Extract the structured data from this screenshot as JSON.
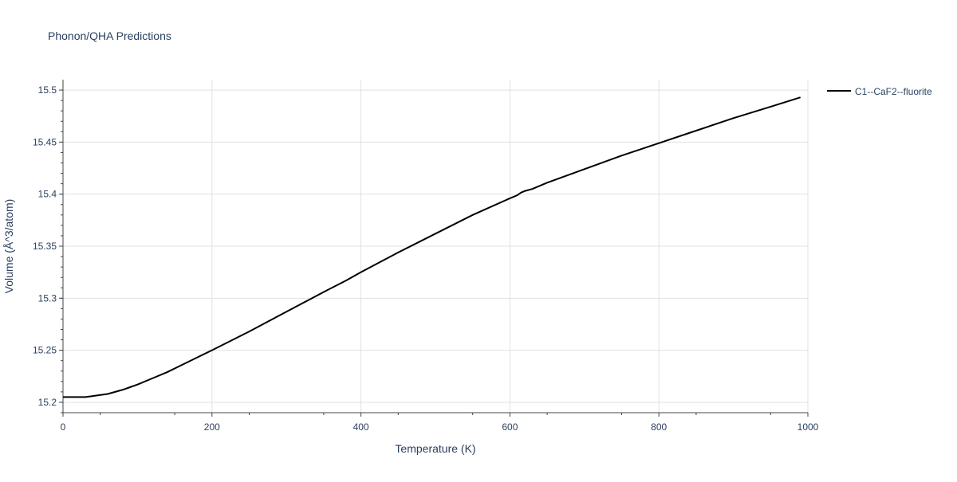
{
  "chart_data": {
    "type": "line",
    "title": "Phonon/QHA Predictions",
    "xlabel": "Temperature (K)",
    "ylabel": "Volume (Å^3/atom)",
    "xlim": [
      0,
      1000
    ],
    "ylim": [
      15.19,
      15.51
    ],
    "x_ticks": [
      0,
      200,
      400,
      600,
      800,
      1000
    ],
    "y_ticks": [
      15.2,
      15.25,
      15.3,
      15.35,
      15.4,
      15.45,
      15.5
    ],
    "x_tick_labels": [
      "0",
      "200",
      "400",
      "600",
      "800",
      "1000"
    ],
    "y_tick_labels": [
      "15.2",
      "15.25",
      "15.3",
      "15.35",
      "15.4",
      "15.45",
      "15.5"
    ],
    "grid": true,
    "legend_position": "top-right",
    "series": [
      {
        "name": "C1--CaF2--fluorite",
        "color": "#000000",
        "x": [
          0,
          10,
          20,
          30,
          40,
          50,
          60,
          70,
          80,
          90,
          100,
          120,
          140,
          160,
          180,
          200,
          250,
          300,
          350,
          380,
          400,
          450,
          500,
          550,
          600,
          610,
          615,
          620,
          630,
          650,
          700,
          750,
          800,
          850,
          900,
          950,
          990
        ],
        "y": [
          15.205,
          15.205,
          15.205,
          15.205,
          15.206,
          15.207,
          15.208,
          15.21,
          15.212,
          15.2145,
          15.217,
          15.223,
          15.229,
          15.236,
          15.243,
          15.25,
          15.268,
          15.287,
          15.306,
          15.317,
          15.325,
          15.344,
          15.362,
          15.38,
          15.396,
          15.399,
          15.4015,
          15.403,
          15.405,
          15.411,
          15.424,
          15.437,
          15.449,
          15.461,
          15.473,
          15.484,
          15.493
        ]
      }
    ]
  }
}
